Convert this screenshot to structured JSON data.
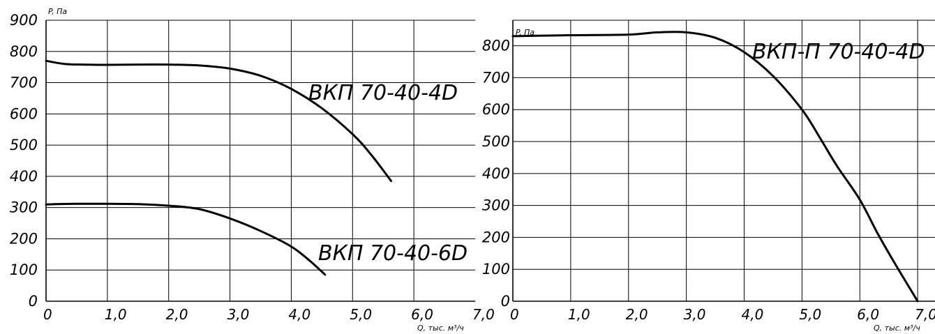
{
  "chart_data": [
    {
      "type": "line",
      "ylabel": "P, Па",
      "xlabel": "Q, тыс. м³/ч",
      "xlim": [
        0,
        7
      ],
      "ylim": [
        0,
        900
      ],
      "xticks": [
        "0",
        "1,0",
        "2,0",
        "3,0",
        "4,0",
        "5,0",
        "6,0",
        "7,0"
      ],
      "yticks": [
        "0",
        "100",
        "200",
        "300",
        "400",
        "500",
        "600",
        "700",
        "800",
        "900"
      ],
      "grid": true,
      "series": [
        {
          "name": "ВКП 70-40-4D",
          "x": [
            0,
            0.3,
            0.6,
            1.0,
            1.5,
            2.0,
            2.5,
            3.0,
            3.5,
            4.0,
            4.5,
            5.0,
            5.3,
            5.63
          ],
          "y": [
            770,
            760,
            758,
            757,
            758,
            758,
            755,
            745,
            722,
            680,
            618,
            535,
            470,
            385
          ]
        },
        {
          "name": "ВКП 70-40-6D",
          "x": [
            0,
            0.5,
            1.0,
            1.5,
            2.0,
            2.5,
            3.0,
            3.5,
            4.0,
            4.3,
            4.55
          ],
          "y": [
            310,
            312,
            312,
            311,
            306,
            295,
            265,
            225,
            175,
            130,
            85
          ]
        }
      ]
    },
    {
      "type": "line",
      "ylabel": "P, Па",
      "xlabel": "Q, тыс. м³/ч",
      "xlim": [
        0,
        7.3
      ],
      "ylim": [
        0,
        880
      ],
      "xticks": [
        "0",
        "1,0",
        "2,0",
        "3,0",
        "4,0",
        "5,0",
        "6,0",
        "7,0"
      ],
      "yticks": [
        "0",
        "100",
        "200",
        "300",
        "400",
        "500",
        "600",
        "700",
        "800"
      ],
      "grid": true,
      "series": [
        {
          "name": "ВКП-П 70-40-4D",
          "x": [
            0,
            1.0,
            2.0,
            2.5,
            3.0,
            3.5,
            4.0,
            4.5,
            5.0,
            5.3,
            5.6,
            6.0,
            6.3,
            6.6,
            7.0
          ],
          "y": [
            830,
            833,
            835,
            842,
            842,
            825,
            780,
            705,
            600,
            515,
            425,
            318,
            215,
            120,
            0
          ]
        }
      ]
    }
  ]
}
